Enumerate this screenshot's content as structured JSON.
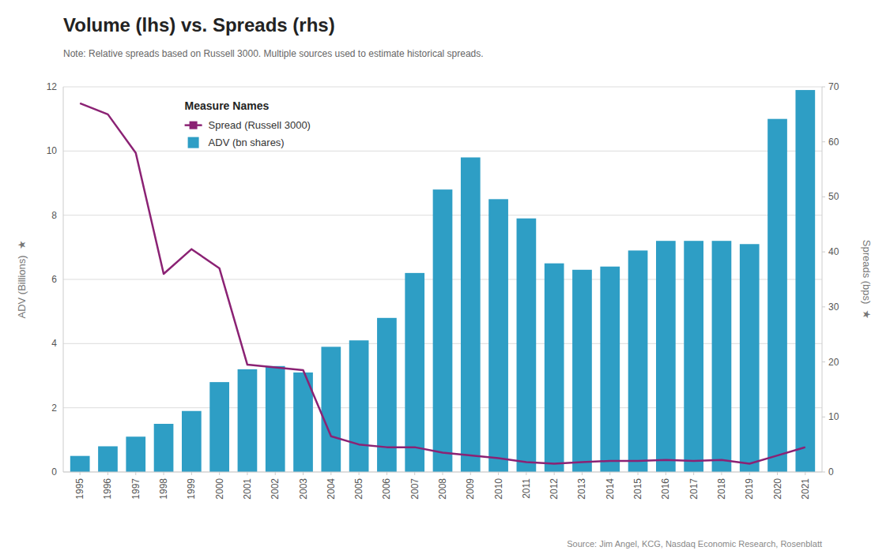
{
  "chart_data": {
    "type": "bar",
    "title": "Volume (lhs) vs. Spreads (rhs)",
    "subtitle": "Note: Relative spreads based on Russell 3000. Multiple sources used to estimate historical spreads.",
    "annotations": [
      "Source: Jim Angel, KCG, Nasdaq Economic Research, Rosenblatt"
    ],
    "ylabel": "ADV (Billions)  ★",
    "y2label": "Spreads (bps)  ★",
    "legend_title": "Measure Names",
    "legend": "top-left",
    "grid": true,
    "categories": [
      "1995",
      "1996",
      "1997",
      "1998",
      "1999",
      "2000",
      "2001",
      "2002",
      "2003",
      "2004",
      "2005",
      "2006",
      "2007",
      "2008",
      "2009",
      "2010",
      "2011",
      "2012",
      "2013",
      "2014",
      "2015",
      "2016",
      "2017",
      "2018",
      "2019",
      "2020",
      "2021"
    ],
    "series": [
      {
        "name": "ADV (bn shares)",
        "type": "bar",
        "color": "#2E9EC5",
        "values": [
          0.5,
          0.8,
          1.1,
          1.5,
          1.9,
          2.8,
          3.2,
          3.3,
          3.1,
          3.9,
          4.1,
          4.8,
          6.2,
          8.8,
          9.8,
          8.5,
          7.9,
          6.5,
          6.3,
          6.4,
          6.9,
          7.2,
          7.2,
          7.2,
          7.1,
          11.0,
          11.9
        ]
      },
      {
        "name": "Spread (Russell 3000)",
        "type": "line",
        "color": "#8B2274",
        "axis": "y2",
        "values": [
          67.0,
          65.0,
          58.0,
          36.0,
          40.5,
          37.0,
          19.5,
          19.0,
          18.5,
          6.5,
          5.0,
          4.5,
          4.5,
          3.5,
          3.0,
          2.5,
          1.8,
          1.5,
          1.8,
          2.0,
          2.0,
          2.2,
          2.0,
          2.2,
          1.5,
          3.0,
          4.5
        ]
      }
    ],
    "ylim": [
      0,
      12
    ],
    "yticks": [
      0,
      2,
      4,
      6,
      8,
      10,
      12
    ],
    "y2lim": [
      0,
      70
    ],
    "y2ticks": [
      0,
      10,
      20,
      30,
      40,
      50,
      60,
      70
    ]
  }
}
